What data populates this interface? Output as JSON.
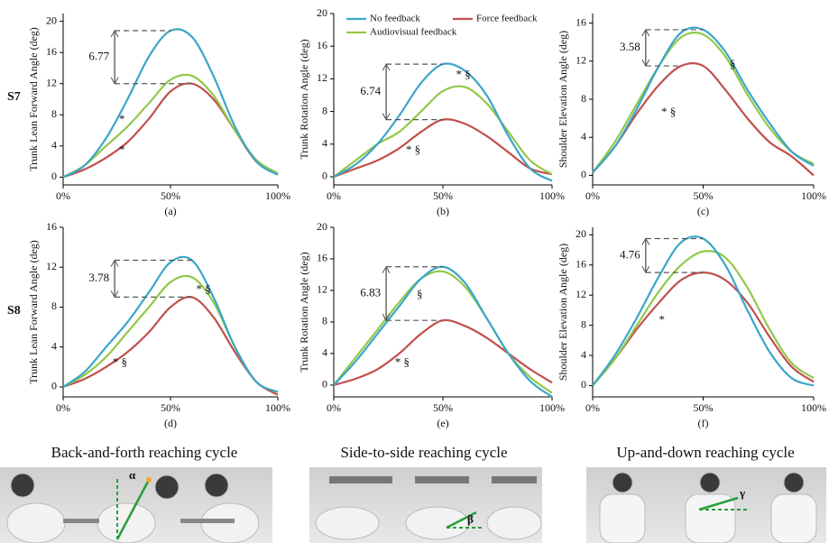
{
  "chart_data": [
    {
      "type": "line",
      "caption": "(a)",
      "y_label": "Trunk Lean Forward Angle (deg)",
      "x": [
        0,
        10,
        20,
        30,
        40,
        50,
        60,
        70,
        80,
        90,
        100
      ],
      "xlim": [
        0,
        100
      ],
      "xticks": [
        {
          "value": 0,
          "label": "0%"
        },
        {
          "value": 50,
          "label": "50%"
        },
        {
          "value": 100,
          "label": "100%"
        }
      ],
      "ylim": [
        -1,
        21
      ],
      "yticks": [
        0,
        4,
        8,
        12,
        16,
        20
      ],
      "series": [
        {
          "color": "#3aa6c8",
          "values": [
            0,
            1.5,
            5,
            10,
            15.5,
            18.8,
            18,
            13,
            6.5,
            2,
            0.3
          ]
        },
        {
          "color": "#c0504d",
          "values": [
            0,
            1,
            2.5,
            4.5,
            7.5,
            11,
            12,
            10,
            6,
            2,
            0.5
          ]
        },
        {
          "color": "#92c84a",
          "values": [
            0,
            1.5,
            4,
            6.5,
            9.5,
            12.5,
            13,
            10.5,
            6,
            2.2,
            0.5
          ]
        }
      ],
      "annotations": [
        "6.77",
        "*",
        "*"
      ]
    },
    {
      "type": "line",
      "caption": "(b)",
      "y_label": "Trunk Rotation Angle (deg)",
      "x": [
        0,
        10,
        20,
        30,
        40,
        50,
        60,
        70,
        80,
        90,
        100
      ],
      "xlim": [
        0,
        100
      ],
      "xticks": [
        {
          "value": 0,
          "label": "0%"
        },
        {
          "value": 50,
          "label": "50%"
        },
        {
          "value": 100,
          "label": "100%"
        }
      ],
      "ylim": [
        -1,
        20
      ],
      "yticks": [
        0,
        4,
        8,
        12,
        16,
        20
      ],
      "legend": "upper left",
      "series": [
        {
          "name": "No feedback",
          "color": "#3aa6c8",
          "values": [
            0,
            1.5,
            4,
            7.5,
            11.5,
            13.8,
            13,
            10,
            5,
            1,
            -0.5
          ]
        },
        {
          "name": "Force feedback",
          "color": "#c0504d",
          "values": [
            0,
            1,
            2,
            3.5,
            5.5,
            7,
            6.5,
            5,
            3,
            1,
            0.3
          ]
        },
        {
          "name": "Audiovisual feedback",
          "color": "#92c84a",
          "values": [
            0,
            2,
            4,
            5.5,
            8,
            10.5,
            11,
            9,
            5.5,
            2,
            0.3
          ]
        }
      ],
      "annotations": [
        "6.74",
        "* §",
        "* §"
      ]
    },
    {
      "type": "line",
      "caption": "(c)",
      "y_label": "Shoulder Elevation Angle (deg)",
      "x": [
        0,
        10,
        20,
        30,
        40,
        50,
        60,
        70,
        80,
        90,
        100
      ],
      "xlim": [
        0,
        100
      ],
      "xticks": [
        {
          "value": 0,
          "label": "0%"
        },
        {
          "value": 50,
          "label": "50%"
        },
        {
          "value": 100,
          "label": "100%"
        }
      ],
      "ylim": [
        -1,
        17
      ],
      "yticks": [
        0,
        4,
        8,
        12,
        16
      ],
      "series": [
        {
          "color": "#3aa6c8",
          "values": [
            0.3,
            3,
            7,
            11.5,
            15,
            15.3,
            13,
            9,
            5.5,
            2.5,
            1
          ]
        },
        {
          "color": "#c0504d",
          "values": [
            0.3,
            3,
            6.5,
            9.5,
            11.5,
            11.5,
            9,
            6,
            3.5,
            2,
            0
          ]
        },
        {
          "color": "#92c84a",
          "values": [
            0.3,
            3.5,
            7.5,
            11.5,
            14.5,
            14.8,
            12.5,
            8.5,
            5,
            2.5,
            1.2
          ]
        }
      ],
      "annotations": [
        "3.58",
        "§",
        "* §"
      ]
    },
    {
      "type": "line",
      "caption": "(d)",
      "y_label": "Trunk Lean Forward Angle (deg)",
      "x": [
        0,
        10,
        20,
        30,
        40,
        50,
        60,
        70,
        80,
        90,
        100
      ],
      "xlim": [
        0,
        100
      ],
      "xticks": [
        {
          "value": 0,
          "label": "0%"
        },
        {
          "value": 50,
          "label": "50%"
        },
        {
          "value": 100,
          "label": "100%"
        }
      ],
      "ylim": [
        -1,
        16
      ],
      "yticks": [
        0,
        4,
        8,
        12,
        16
      ],
      "series": [
        {
          "color": "#3aa6c8",
          "values": [
            0,
            1.5,
            4,
            6.5,
            9.5,
            12.5,
            12.7,
            9,
            4,
            0.5,
            -0.5
          ]
        },
        {
          "color": "#c0504d",
          "values": [
            0,
            0.8,
            2,
            3.5,
            5.5,
            8,
            9,
            7,
            3.5,
            0.5,
            -0.8
          ]
        },
        {
          "color": "#92c84a",
          "values": [
            0,
            1.2,
            3,
            5.5,
            8,
            10.5,
            11,
            8.5,
            4,
            0.5,
            -0.5
          ]
        }
      ],
      "annotations": [
        "3.78",
        "* §",
        "* §"
      ]
    },
    {
      "type": "line",
      "caption": "(e)",
      "y_label": "Trunk Rotation Angle (deg)",
      "x": [
        0,
        10,
        20,
        30,
        40,
        50,
        60,
        70,
        80,
        90,
        100
      ],
      "xlim": [
        0,
        100
      ],
      "xticks": [
        {
          "value": 0,
          "label": "0%"
        },
        {
          "value": 50,
          "label": "50%"
        },
        {
          "value": 100,
          "label": "100%"
        }
      ],
      "ylim": [
        -1.5,
        20
      ],
      "yticks": [
        0,
        4,
        8,
        12,
        16,
        20
      ],
      "series": [
        {
          "color": "#3aa6c8",
          "values": [
            0,
            3,
            6.5,
            10,
            13.5,
            15,
            13,
            8.5,
            4,
            0.5,
            -1.5
          ]
        },
        {
          "color": "#c0504d",
          "values": [
            0,
            0.8,
            2,
            4,
            6.5,
            8.2,
            7.5,
            6,
            4,
            2,
            0.3
          ]
        },
        {
          "color": "#92c84a",
          "values": [
            0,
            3.5,
            7,
            10.5,
            13.5,
            14.4,
            12.5,
            8.5,
            4,
            1,
            -1
          ]
        }
      ],
      "annotations": [
        "6.83",
        "§",
        "* §"
      ]
    },
    {
      "type": "line",
      "caption": "(f)",
      "y_label": "Shoulder Elevation Angle (deg)",
      "x": [
        0,
        10,
        20,
        30,
        40,
        50,
        60,
        70,
        80,
        90,
        100
      ],
      "xlim": [
        0,
        100
      ],
      "xticks": [
        {
          "value": 0,
          "label": "0%"
        },
        {
          "value": 50,
          "label": "50%"
        },
        {
          "value": 100,
          "label": "100%"
        }
      ],
      "ylim": [
        -1.5,
        21
      ],
      "yticks": [
        0,
        4,
        8,
        12,
        16,
        20
      ],
      "series": [
        {
          "color": "#3aa6c8",
          "values": [
            0,
            4,
            9,
            14.5,
            19,
            19.5,
            16,
            10,
            4.5,
            1,
            0
          ]
        },
        {
          "color": "#c0504d",
          "values": [
            0,
            3.5,
            7.5,
            11,
            14,
            15,
            14,
            11,
            6.5,
            2.5,
            0.5
          ]
        },
        {
          "color": "#92c84a",
          "values": [
            0,
            3.5,
            8,
            12.5,
            16,
            17.8,
            17,
            13,
            7.5,
            3,
            1
          ]
        }
      ],
      "annotations": [
        "4.76",
        "*"
      ]
    }
  ],
  "rows": [
    "S7",
    "S8"
  ],
  "cycles": [
    "Back-and-forth reaching cycle",
    "Side-to-side reaching cycle",
    "Up-and-down reaching cycle"
  ],
  "angle_labels": [
    "α",
    "β",
    "γ"
  ]
}
